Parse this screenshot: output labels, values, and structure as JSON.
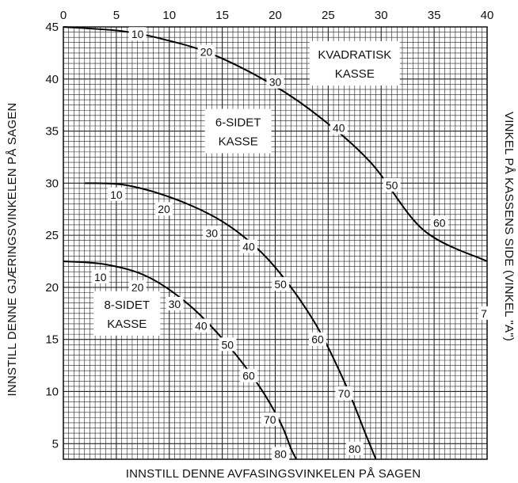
{
  "chart_data": {
    "type": "line",
    "xlabel": "INNSTILL DENNE AVFASINGSVINKELEN PÅ SAGEN",
    "ylabel": "INNSTILL DENNE GJÆRINGSVINKELEN PÅ SAGEN",
    "right_label": "VINKEL PÅ KASSENS SIDE (VINKEL \"A\")",
    "xlim": [
      0,
      40
    ],
    "ylim": [
      3.5,
      45
    ],
    "x_ticks": [
      "0",
      "5",
      "10",
      "15",
      "20",
      "25",
      "30",
      "35",
      "40"
    ],
    "y_ticks": [
      "5",
      "10",
      "15",
      "20",
      "25",
      "30",
      "35",
      "40",
      "45"
    ],
    "grid": true,
    "series": [
      {
        "name": "KVADRATISK KASSE",
        "x": [
          0.0,
          5.5,
          9.5,
          14.0,
          19.5,
          24.0,
          29.0,
          34.0,
          40.0
        ],
        "y": [
          45.0,
          44.6,
          43.8,
          42.4,
          39.6,
          36.5,
          32.0,
          25.5,
          22.5
        ],
        "point_labels": [
          {
            "text": "10",
            "x": 7,
            "y": 44.3
          },
          {
            "text": "20",
            "x": 13.5,
            "y": 42.6
          },
          {
            "text": "30",
            "x": 20,
            "y": 39.7
          },
          {
            "text": "40",
            "x": 26,
            "y": 35.3
          },
          {
            "text": "50",
            "x": 31,
            "y": 29.8
          },
          {
            "text": "60",
            "x": 35.5,
            "y": 26.2
          },
          {
            "text": "7",
            "x": 39.7,
            "y": 17.5
          }
        ]
      },
      {
        "name": "6-SIDET KASSE",
        "x": [
          2.0,
          6.0,
          11.0,
          15.5,
          19.5,
          23.5,
          26.5,
          28.5,
          29.5
        ],
        "y": [
          30.0,
          29.8,
          28.3,
          26.0,
          22.5,
          17.0,
          11.0,
          6.0,
          3.5
        ],
        "point_labels": [
          {
            "text": "10",
            "x": 5,
            "y": 28.9
          },
          {
            "text": "20",
            "x": 9.5,
            "y": 27.5
          },
          {
            "text": "30",
            "x": 14,
            "y": 25.2
          },
          {
            "text": "40",
            "x": 17.5,
            "y": 23.9
          },
          {
            "text": "50",
            "x": 20.5,
            "y": 20.3
          },
          {
            "text": "60",
            "x": 24,
            "y": 15.0
          },
          {
            "text": "70",
            "x": 26.5,
            "y": 9.8
          },
          {
            "text": "80",
            "x": 27.5,
            "y": 4.5
          }
        ]
      },
      {
        "name": "8-SIDET KASSE",
        "x": [
          0.0,
          4.0,
          8.0,
          12.0,
          15.5,
          18.5,
          20.5,
          21.5,
          22.0
        ],
        "y": [
          22.5,
          22.2,
          21.0,
          18.2,
          14.5,
          10.5,
          7.0,
          4.5,
          3.5
        ],
        "point_labels": [
          {
            "text": "10",
            "x": 3.5,
            "y": 21.0
          },
          {
            "text": "20",
            "x": 7,
            "y": 20.0
          },
          {
            "text": "30",
            "x": 10.5,
            "y": 18.4
          },
          {
            "text": "40",
            "x": 13,
            "y": 16.3
          },
          {
            "text": "50",
            "x": 15.5,
            "y": 14.5
          },
          {
            "text": "60",
            "x": 17.5,
            "y": 11.5
          },
          {
            "text": "70",
            "x": 19.5,
            "y": 7.3
          },
          {
            "text": "80",
            "x": 20.5,
            "y": 4.0
          }
        ]
      }
    ],
    "box_labels": [
      {
        "lines": [
          "KVADRATISK",
          "KASSE"
        ],
        "x": 27.5,
        "y": 41.5
      },
      {
        "lines": [
          "6-SIDET",
          "KASSE"
        ],
        "x": 16.5,
        "y": 35.0
      },
      {
        "lines": [
          "8-SIDET",
          "KASSE"
        ],
        "x": 6.0,
        "y": 17.5
      }
    ]
  }
}
